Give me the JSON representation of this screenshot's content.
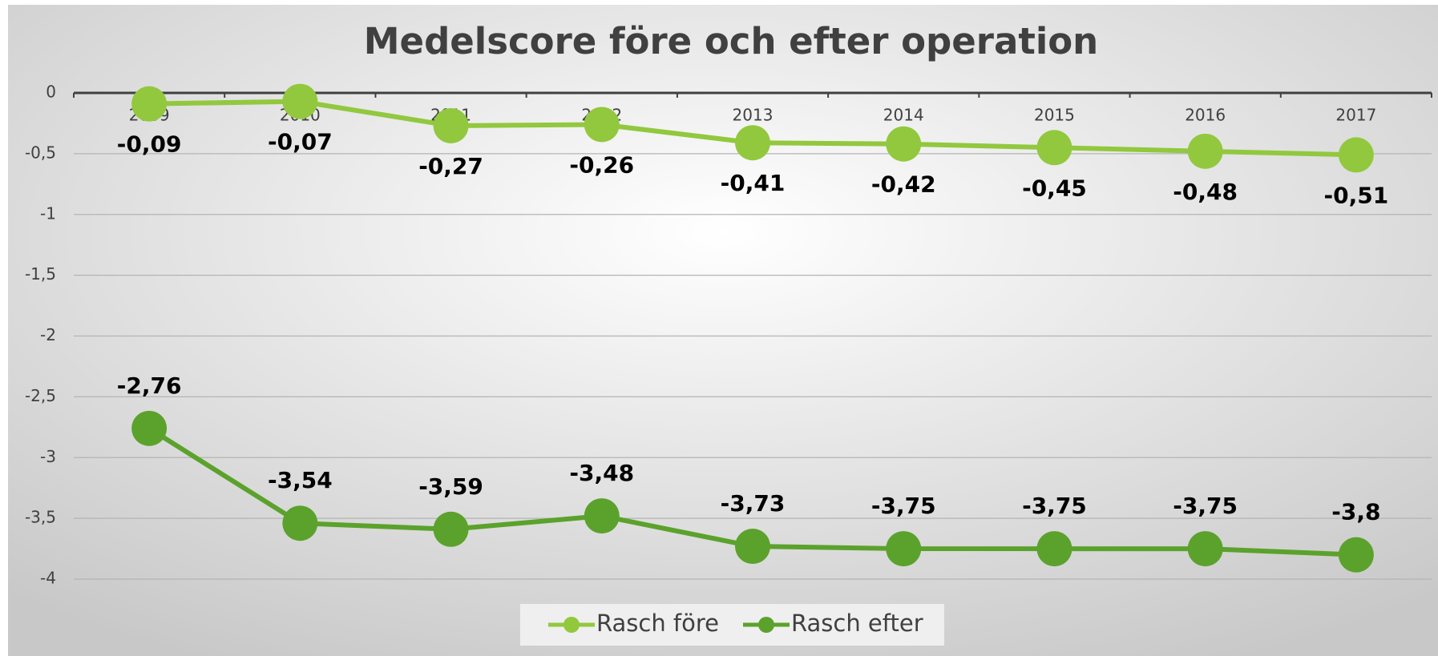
{
  "chart_data": {
    "type": "line",
    "title": "Medelscore före och efter operation",
    "categories": [
      "2009",
      "2010",
      "2011",
      "2012",
      "2013",
      "2014",
      "2015",
      "2016",
      "2017"
    ],
    "series": [
      {
        "name": "Rasch före",
        "color": "#92c83e",
        "values": [
          -0.09,
          -0.07,
          -0.27,
          -0.26,
          -0.41,
          -0.42,
          -0.45,
          -0.48,
          -0.51
        ],
        "value_labels": [
          "-0,09",
          "-0,07",
          "-0,27",
          "-0,26",
          "-0,41",
          "-0,42",
          "-0,45",
          "-0,48",
          "-0,51"
        ]
      },
      {
        "name": "Rasch efter",
        "color": "#5ba22c",
        "values": [
          -2.76,
          -3.54,
          -3.59,
          -3.48,
          -3.73,
          -3.75,
          -3.75,
          -3.75,
          -3.8
        ],
        "value_labels": [
          "-2,76",
          "-3,54",
          "-3,59",
          "-3,48",
          "-3,73",
          "-3,75",
          "-3,75",
          "-3,75",
          "-3,8"
        ]
      }
    ],
    "ylim": [
      -4,
      0
    ],
    "yticks": [
      0,
      {
        "value": -0.5,
        "label": "-0,5"
      },
      {
        "value": -1,
        "label": "-1"
      },
      {
        "value": -1.5,
        "label": "-1,5"
      },
      {
        "value": -2,
        "label": "-2"
      },
      {
        "value": -2.5,
        "label": "-2,5"
      },
      {
        "value": -3,
        "label": "-3"
      },
      {
        "value": -3.5,
        "label": "-3,5"
      },
      {
        "value": -4,
        "label": "-4"
      }
    ],
    "grid": true,
    "legend": "bottom"
  }
}
